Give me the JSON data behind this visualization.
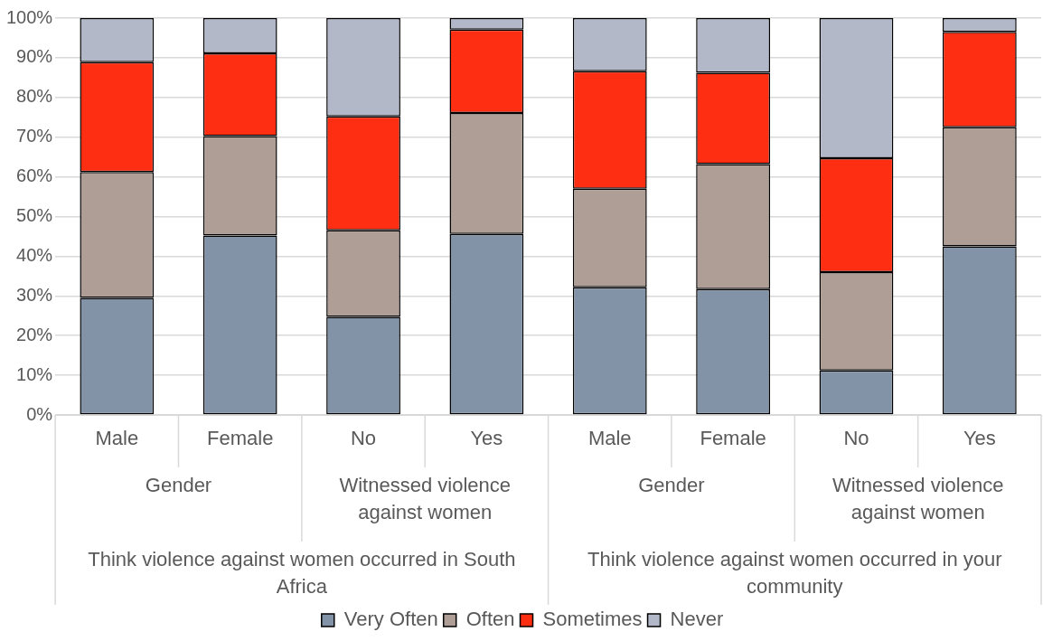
{
  "chart_data": {
    "type": "bar",
    "stacked": true,
    "categories": [
      "Male",
      "Female",
      "No",
      "Yes",
      "Male",
      "Female",
      "No",
      "Yes"
    ],
    "series": [
      {
        "name": "Very Often",
        "color": "#8393a7",
        "values": [
          29.5,
          45.2,
          24.7,
          45.6,
          32.2,
          31.7,
          11.2,
          42.5
        ]
      },
      {
        "name": "Often",
        "color": "#ae9e95",
        "values": [
          31.7,
          25.1,
          21.8,
          30.5,
          24.8,
          31.5,
          24.8,
          30.0
        ]
      },
      {
        "name": "Sometimes",
        "color": "#fe2e12",
        "values": [
          27.7,
          20.8,
          28.7,
          21.0,
          29.6,
          23.0,
          28.7,
          24.0
        ]
      },
      {
        "name": "Never",
        "color": "#b2b8c8",
        "values": [
          11.1,
          8.9,
          24.8,
          2.9,
          13.4,
          13.8,
          35.3,
          3.5
        ]
      }
    ],
    "ylim": [
      0,
      100
    ],
    "yticks": [
      {
        "value": 0,
        "label": "0%"
      },
      {
        "value": 10,
        "label": "10%"
      },
      {
        "value": 20,
        "label": "20%"
      },
      {
        "value": 30,
        "label": "30%"
      },
      {
        "value": 40,
        "label": "40%"
      },
      {
        "value": 50,
        "label": "50%"
      },
      {
        "value": 60,
        "label": "60%"
      },
      {
        "value": 70,
        "label": "70%"
      },
      {
        "value": 80,
        "label": "80%"
      },
      {
        "value": 90,
        "label": "90%"
      },
      {
        "value": 100,
        "label": "100%"
      }
    ],
    "grid": "y",
    "legend": "bottom",
    "annotations": [
      "Gender",
      "Witnessed violence against women",
      "Gender",
      "Witnessed violence against women",
      "Think violence against women occurred in South Africa",
      "Think violence against women occurred in your community"
    ]
  }
}
